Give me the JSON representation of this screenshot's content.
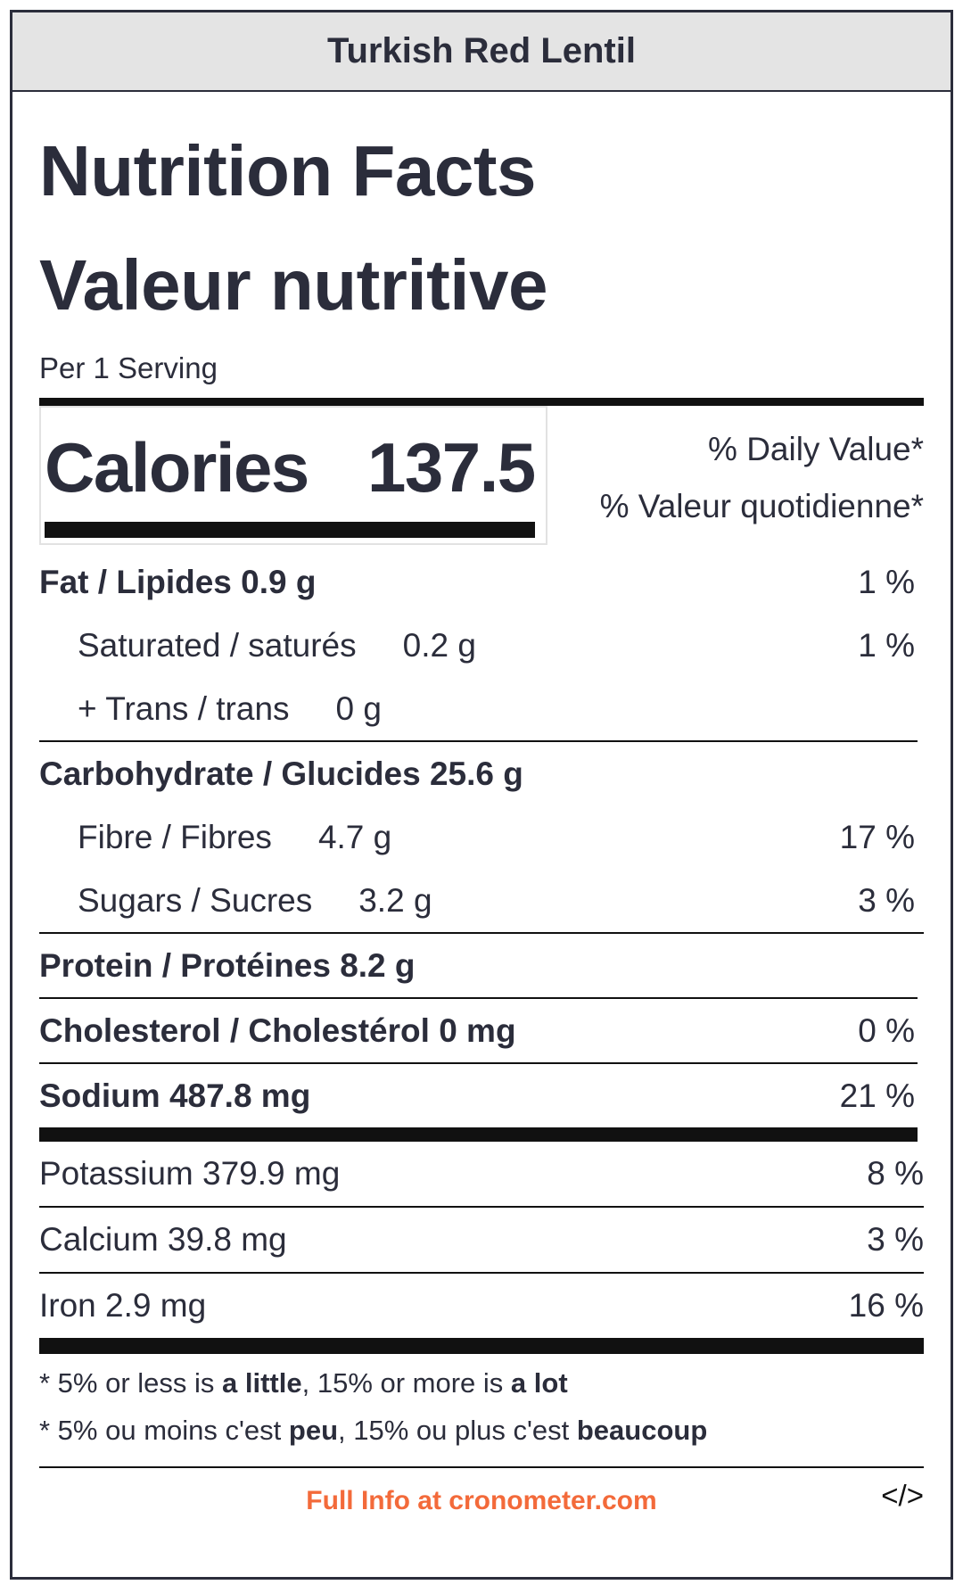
{
  "header": {
    "recipe_title": "Turkish Red Lentil"
  },
  "titles": {
    "en": "Nutrition Facts",
    "fr": "Valeur nutritive"
  },
  "serving": "Per 1 Serving",
  "calories": {
    "label": "Calories",
    "value": "137.5"
  },
  "daily_value": {
    "en": "% Daily Value*",
    "fr": "% Valeur quotidienne*"
  },
  "nutrients": {
    "fat": {
      "label": "Fat / Lipides 0.9 g",
      "pct": "1 %"
    },
    "saturated": {
      "label": "Saturated / saturés",
      "amount": "0.2 g",
      "pct": "1 %"
    },
    "trans": {
      "label": "+ Trans / trans",
      "amount": "0 g"
    },
    "carb": {
      "label": "Carbohydrate / Glucides 25.6 g"
    },
    "fibre": {
      "label": "Fibre / Fibres",
      "amount": "4.7 g",
      "pct": "17 %"
    },
    "sugars": {
      "label": "Sugars / Sucres",
      "amount": "3.2 g",
      "pct": "3 %"
    },
    "protein": {
      "label": "Protein / Protéines 8.2 g"
    },
    "cholesterol": {
      "label": "Cholesterol / Cholestérol 0 mg",
      "pct": "0 %"
    },
    "sodium": {
      "label": "Sodium 487.8 mg",
      "pct": "21 %"
    }
  },
  "minerals": {
    "potassium": {
      "label": "Potassium 379.9 mg",
      "pct": "8 %"
    },
    "calcium": {
      "label": "Calcium 39.8 mg",
      "pct": "3 %"
    },
    "iron": {
      "label": "Iron 2.9 mg",
      "pct": "16 %"
    }
  },
  "footnote": {
    "en": {
      "prefix": "* 5% or less is ",
      "little": "a little",
      "mid": ", 15% or more is ",
      "lot": "a lot"
    },
    "fr": {
      "prefix": "* 5% ou moins c'est ",
      "little": "peu",
      "mid": ", 15% ou plus c'est ",
      "lot": "beaucoup"
    }
  },
  "footer": {
    "link_text": "Full Info at cronometer.com",
    "embed_icon": "</>"
  },
  "colors": {
    "text": "#2b2d3b",
    "header_bg": "#e4e4e4",
    "link": "#f36a3a"
  }
}
